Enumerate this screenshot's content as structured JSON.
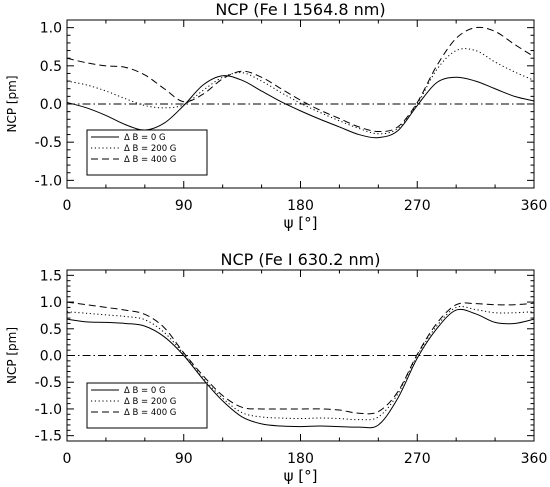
{
  "chart_data": [
    {
      "type": "line",
      "title": "NCP (Fe I 1564.8 nm)",
      "xlabel": "ψ [°]",
      "ylabel": "NCP [pm]",
      "xlim": [
        0,
        360
      ],
      "ylim": [
        -1.1,
        1.1
      ],
      "xticks": [
        0,
        90,
        180,
        270,
        360
      ],
      "yticks": [
        -1.0,
        -0.5,
        0.0,
        0.5,
        1.0
      ],
      "ytick_labels": [
        "-1.0",
        "-0.5",
        "0.0",
        "0.5",
        "1.0"
      ],
      "legend_position": "bottom-left",
      "x": [
        0,
        15,
        30,
        45,
        60,
        75,
        90,
        105,
        120,
        135,
        150,
        165,
        180,
        195,
        210,
        225,
        240,
        255,
        270,
        285,
        300,
        315,
        330,
        345,
        360
      ],
      "series": [
        {
          "name": "Δ B =    0 G",
          "style": "solid",
          "values": [
            0.02,
            -0.05,
            -0.15,
            -0.27,
            -0.34,
            -0.25,
            -0.02,
            0.25,
            0.37,
            0.31,
            0.17,
            0.03,
            -0.09,
            -0.2,
            -0.3,
            -0.4,
            -0.44,
            -0.35,
            -0.02,
            0.28,
            0.35,
            0.3,
            0.2,
            0.1,
            0.04
          ]
        },
        {
          "name": "Δ B = 200 G",
          "style": "dotted",
          "values": [
            0.3,
            0.25,
            0.17,
            0.07,
            -0.02,
            -0.05,
            -0.01,
            0.18,
            0.35,
            0.41,
            0.3,
            0.15,
            0.01,
            -0.11,
            -0.22,
            -0.32,
            -0.39,
            -0.32,
            0.0,
            0.45,
            0.7,
            0.7,
            0.55,
            0.42,
            0.31
          ]
        },
        {
          "name": "Δ B = 400 G",
          "style": "dashed",
          "values": [
            0.6,
            0.54,
            0.5,
            0.48,
            0.38,
            0.2,
            0.03,
            0.13,
            0.33,
            0.43,
            0.35,
            0.2,
            0.05,
            -0.08,
            -0.19,
            -0.3,
            -0.36,
            -0.3,
            0.02,
            0.5,
            0.86,
            1.0,
            0.95,
            0.78,
            0.62
          ]
        },
        {
          "name": "",
          "style": "dashdot",
          "values": [
            0,
            0,
            0,
            0,
            0,
            0,
            0,
            0,
            0,
            0,
            0,
            0,
            0,
            0,
            0,
            0,
            0,
            0,
            0,
            0,
            0,
            0,
            0,
            0,
            0
          ]
        }
      ]
    },
    {
      "type": "line",
      "title": "NCP (Fe I 630.2 nm)",
      "xlabel": "ψ [°]",
      "ylabel": "NCP [pm]",
      "xlim": [
        0,
        360
      ],
      "ylim": [
        -1.6,
        1.6
      ],
      "xticks": [
        0,
        90,
        180,
        270,
        360
      ],
      "yticks": [
        -1.5,
        -1.0,
        -0.5,
        0.0,
        0.5,
        1.0,
        1.5
      ],
      "ytick_labels": [
        "-1.5",
        "-1.0",
        "-0.5",
        "0.0",
        "0.5",
        "1.0",
        "1.5"
      ],
      "legend_position": "bottom-left",
      "x": [
        0,
        15,
        30,
        45,
        60,
        75,
        90,
        105,
        120,
        135,
        150,
        165,
        180,
        195,
        210,
        225,
        240,
        255,
        270,
        285,
        300,
        315,
        330,
        345,
        360
      ],
      "series": [
        {
          "name": "Δ B =    0 G",
          "style": "solid",
          "values": [
            0.68,
            0.63,
            0.62,
            0.6,
            0.55,
            0.35,
            0.0,
            -0.45,
            -0.85,
            -1.15,
            -1.28,
            -1.32,
            -1.33,
            -1.32,
            -1.33,
            -1.34,
            -1.3,
            -0.8,
            -0.05,
            0.5,
            0.85,
            0.78,
            0.62,
            0.6,
            0.68
          ]
        },
        {
          "name": "Δ B = 200 G",
          "style": "dotted",
          "values": [
            0.82,
            0.79,
            0.76,
            0.73,
            0.67,
            0.43,
            0.03,
            -0.42,
            -0.8,
            -1.07,
            -1.15,
            -1.17,
            -1.18,
            -1.17,
            -1.18,
            -1.2,
            -1.15,
            -0.72,
            0.0,
            0.55,
            0.9,
            0.86,
            0.8,
            0.8,
            0.82
          ]
        },
        {
          "name": "Δ B = 400 G",
          "style": "dashed",
          "values": [
            1.0,
            0.95,
            0.9,
            0.85,
            0.77,
            0.52,
            0.05,
            -0.38,
            -0.75,
            -0.97,
            -1.0,
            -1.0,
            -1.0,
            -1.0,
            -1.02,
            -1.08,
            -1.05,
            -0.68,
            0.02,
            0.6,
            0.95,
            0.97,
            0.95,
            0.95,
            0.98
          ]
        },
        {
          "name": "",
          "style": "dashdot",
          "values": [
            0,
            0,
            0,
            0,
            0,
            0,
            0,
            0,
            0,
            0,
            0,
            0,
            0,
            0,
            0,
            0,
            0,
            0,
            0,
            0,
            0,
            0,
            0,
            0,
            0
          ]
        }
      ]
    }
  ]
}
